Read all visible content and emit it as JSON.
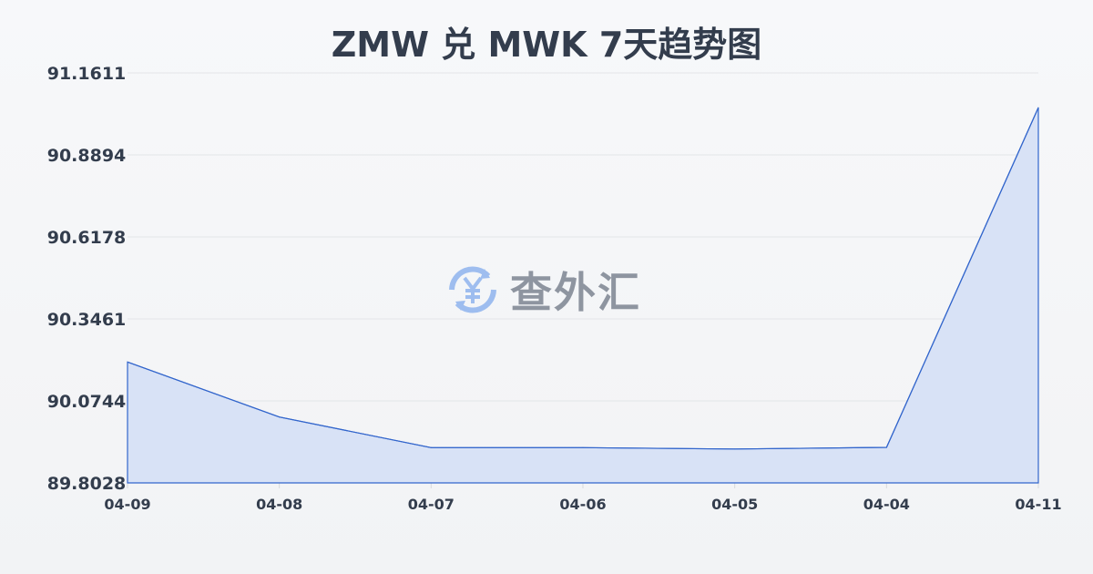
{
  "chart_data": {
    "type": "area",
    "title": "ZMW 兑 MWK 7天趋势图",
    "categories": [
      "04-09",
      "04-08",
      "04-07",
      "04-06",
      "04-05",
      "04-04",
      "04-11"
    ],
    "series": [
      {
        "values": [
          90.2033,
          90.021,
          89.9196,
          89.9196,
          89.915,
          89.9205,
          91.0462
        ]
      }
    ],
    "yticks": [
      "91.1611",
      "90.8894",
      "90.6178",
      "90.3461",
      "90.0744",
      "89.8028"
    ],
    "ylim": [
      89.8028,
      91.1611
    ],
    "grid": true,
    "line_color": "#3366cc",
    "fill_color": "#d6e0f5"
  },
  "watermark": {
    "text": "查外汇",
    "icon": "yen-exchange-icon"
  }
}
